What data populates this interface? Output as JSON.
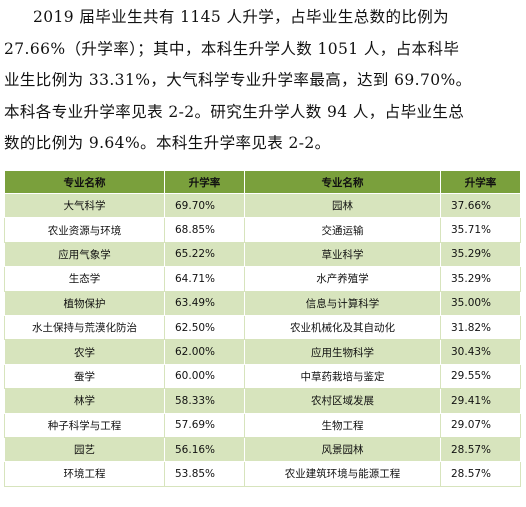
{
  "paragraph": {
    "lines": [
      "2019 届毕业生共有 1145 人升学，占毕业生总数的比例为",
      "27.66%（升学率）；其中，本科生升学人数 1051 人，占本科毕",
      "业生比例为 33.31%，大气科学专业升学率最高，达到 69.70%。",
      "本科各专业升学率见表 2-2。研究生升学人数 94 人，占毕业生总",
      "数的比例为 9.64%。本科生升学率见表 2-2。"
    ]
  },
  "table": {
    "headers": [
      "专业名称",
      "升学率",
      "专业名称",
      "升学率"
    ],
    "rows": [
      [
        "大气科学",
        "69.70%",
        "园林",
        "37.66%"
      ],
      [
        "农业资源与环境",
        "68.85%",
        "交通运输",
        "35.71%"
      ],
      [
        "应用气象学",
        "65.22%",
        "草业科学",
        "35.29%"
      ],
      [
        "生态学",
        "64.71%",
        "水产养殖学",
        "35.29%"
      ],
      [
        "植物保护",
        "63.49%",
        "信息与计算科学",
        "35.00%"
      ],
      [
        "水土保持与荒漠化防治",
        "62.50%",
        "农业机械化及其自动化",
        "31.82%"
      ],
      [
        "农学",
        "62.00%",
        "应用生物科学",
        "30.43%"
      ],
      [
        "蚕学",
        "60.00%",
        "中草药栽培与鉴定",
        "29.55%"
      ],
      [
        "林学",
        "58.33%",
        "农村区域发展",
        "29.41%"
      ],
      [
        "种子科学与工程",
        "57.69%",
        "生物工程",
        "29.07%"
      ],
      [
        "园艺",
        "56.16%",
        "风景园林",
        "28.57%"
      ],
      [
        "环境工程",
        "53.85%",
        "农业建筑环境与能源工程",
        "28.57%"
      ]
    ]
  },
  "colors": {
    "header_bg": "#7aa03c",
    "stripe_bg": "#d7e4bd"
  }
}
